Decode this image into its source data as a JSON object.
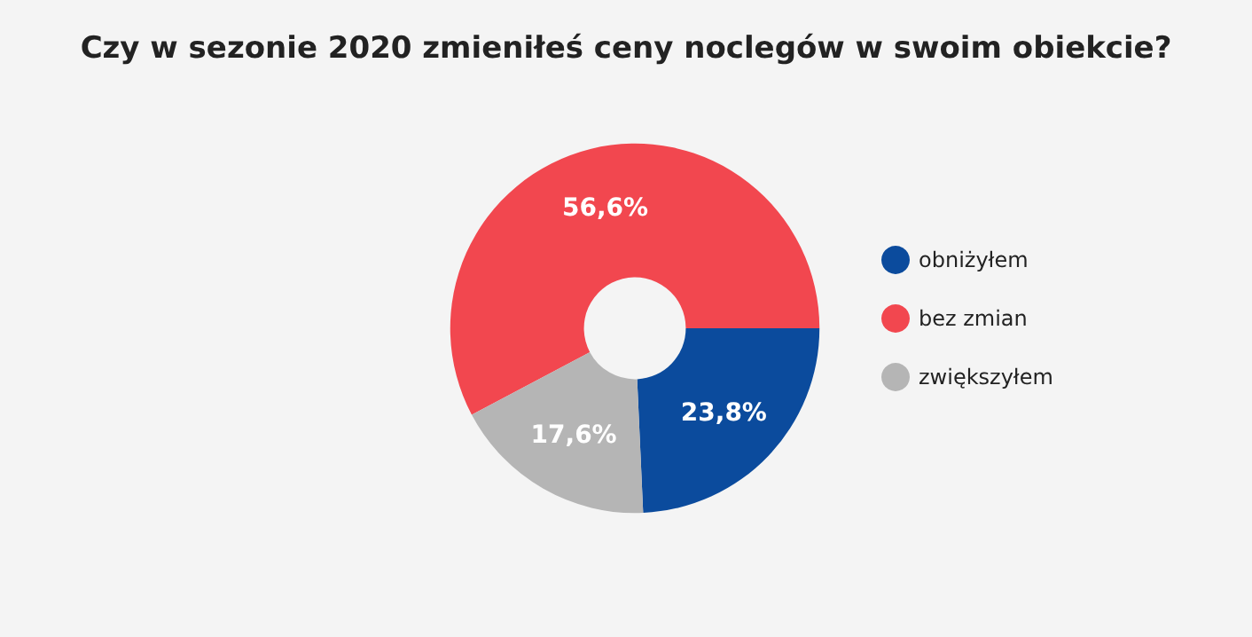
{
  "chart_data": {
    "type": "donut",
    "title": "Czy w sezonie 2020 zmieniłeś ceny noclegów w swoim obiekcie?",
    "categories": [
      "obniżyłem",
      "bez zmian",
      "zwiększyłem"
    ],
    "values": [
      23.8,
      56.6,
      17.6
    ],
    "colors": [
      "#0b4b9d",
      "#f2474f",
      "#b5b5b5"
    ],
    "value_labels": [
      "23,8%",
      "56,6%",
      "17,6%"
    ],
    "legend": "right"
  }
}
